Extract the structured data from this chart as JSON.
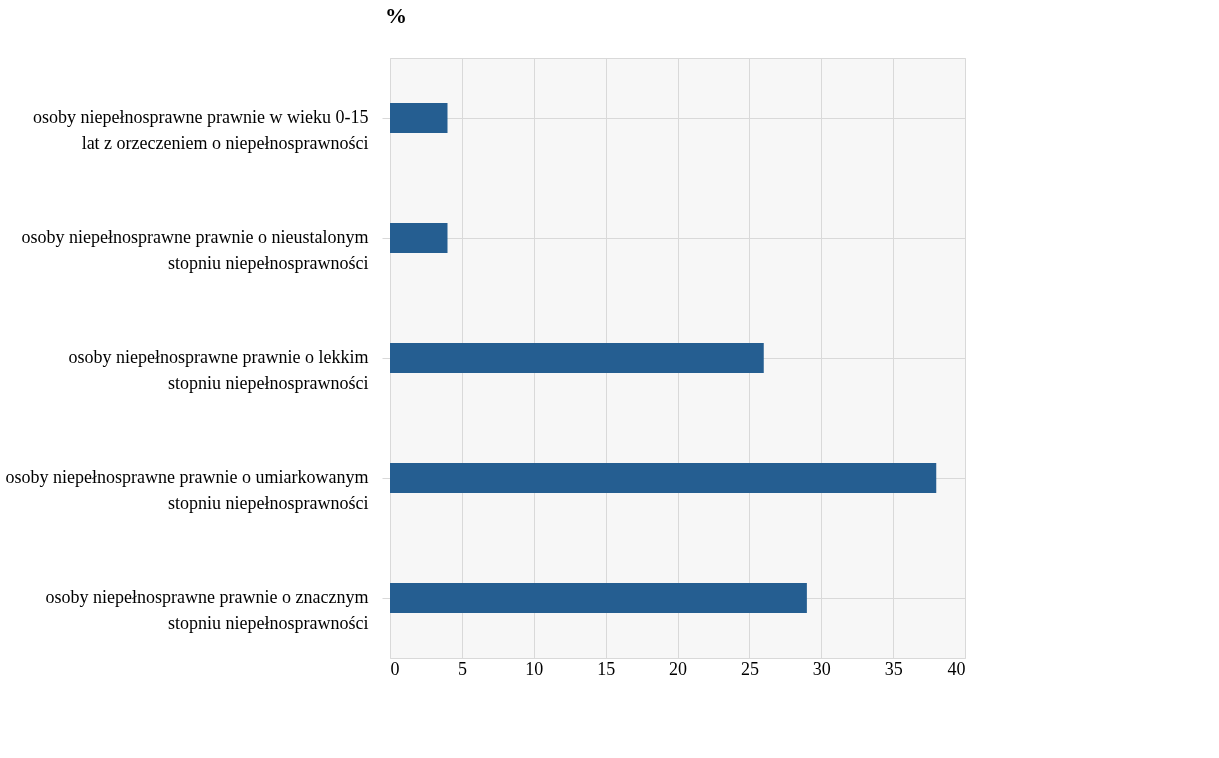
{
  "chart_data": {
    "type": "bar",
    "orientation": "horizontal",
    "title": "%",
    "categories": [
      "osoby niepełnosprawne prawnie w wieku 0-15 lat z orzeczeniem o niepełnosprawności",
      "osoby niepełnosprawne prawnie o nieustalonym stopniu niepełnosprawności",
      "osoby niepełnosprawne prawnie o lekkim stopniu niepełnosprawności",
      "osoby niepełnosprawne prawnie o umiarkowanym stopniu niepełnosprawności",
      "osoby niepełnosprawne prawnie o znacznym stopniu niepełnosprawności"
    ],
    "values": [
      4,
      4,
      26,
      38,
      29
    ],
    "color": "#255e91",
    "xlim": [
      0,
      40
    ],
    "xticks": [
      0,
      5,
      10,
      15,
      20,
      25,
      30,
      35,
      40
    ],
    "grid": true
  }
}
